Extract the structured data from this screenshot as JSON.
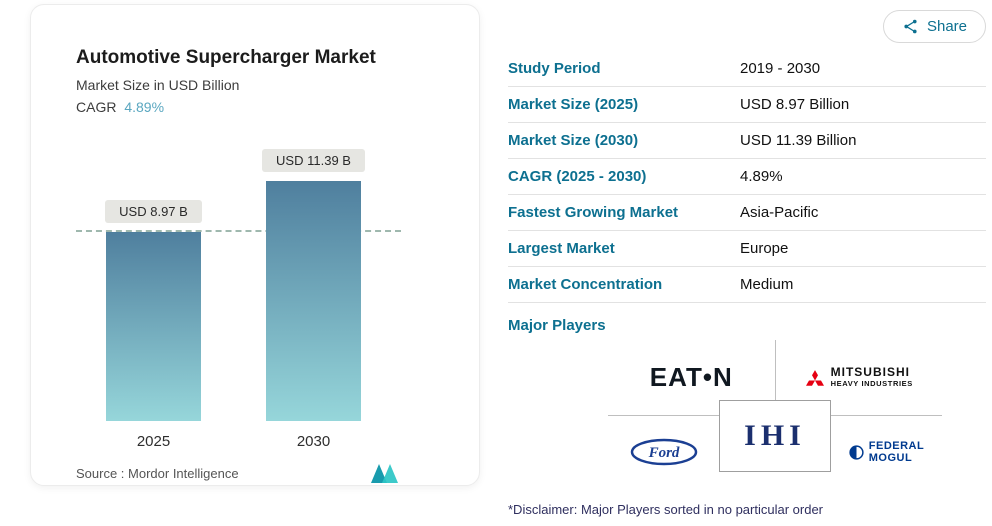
{
  "share": {
    "label": "Share"
  },
  "chart": {
    "title": "Automotive Supercharger Market",
    "subtitle": "Market Size in USD Billion",
    "cagr_label": "CAGR",
    "cagr_value": "4.89%",
    "source": "Source :  Mordor Intelligence"
  },
  "chart_data": {
    "type": "bar",
    "title": "Automotive Supercharger Market",
    "subtitle": "Market Size in USD Billion",
    "categories": [
      "2025",
      "2030"
    ],
    "values": [
      8.97,
      11.39
    ],
    "data_labels": [
      "USD 8.97 B",
      "USD 11.39 B"
    ],
    "unit": "USD Billion",
    "cagr": "4.89%",
    "ylim": [
      0,
      12
    ],
    "grid": false,
    "legend": "none",
    "reference_line": {
      "value": 8.97,
      "style": "dashed"
    }
  },
  "table": {
    "rows": [
      {
        "label": "Study Period",
        "value": "2019 - 2030"
      },
      {
        "label": "Market Size (2025)",
        "value": "USD 8.97 Billion"
      },
      {
        "label": "Market Size (2030)",
        "value": "USD 11.39 Billion"
      },
      {
        "label": "CAGR (2025 - 2030)",
        "value": "4.89%"
      },
      {
        "label": "Fastest Growing Market",
        "value": "Asia-Pacific"
      },
      {
        "label": "Largest Market",
        "value": "Europe"
      },
      {
        "label": "Market Concentration",
        "value": "Medium"
      }
    ],
    "major_players_label": "Major Players"
  },
  "players": {
    "eaton": {
      "text": "EAT•N"
    },
    "mitsubishi": {
      "line1": "MITSUBISHI",
      "line2": "HEAVY INDUSTRIES"
    },
    "ford": {
      "text": "Ford"
    },
    "ihi": {
      "text": "IHI"
    },
    "federal_mogul": {
      "line1": "FEDERAL",
      "line2": "MOGUL"
    }
  },
  "disclaimer": "*Disclaimer: Major Players sorted in no particular order",
  "colors": {
    "accent_teal": "#0d7090",
    "cagr_value": "#5aa7c0",
    "bar_top": "#4f7f9e",
    "bar_bottom": "#96d6da",
    "pill_bg": "#e6e6e2",
    "dash_line": "#9fb8ae",
    "mordor_teal_dark": "#189bad",
    "mordor_teal_light": "#2cc5c6",
    "mitsubishi_red": "#e60012",
    "ford_blue": "#1b3f93",
    "ihi_navy": "#1b2f6e",
    "federal_navy": "#003a8f",
    "eaton_dark": "#101820"
  }
}
